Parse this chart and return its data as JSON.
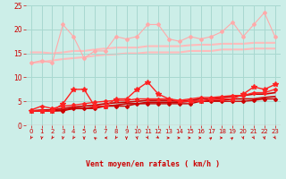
{
  "background_color": "#cceee8",
  "grid_color": "#a8d8d0",
  "xlim": [
    -0.5,
    23.5
  ],
  "ylim": [
    0,
    25
  ],
  "yticks": [
    0,
    5,
    10,
    15,
    20,
    25
  ],
  "xticks": [
    0,
    1,
    2,
    3,
    4,
    5,
    6,
    7,
    8,
    9,
    10,
    11,
    12,
    13,
    14,
    15,
    16,
    17,
    18,
    19,
    20,
    21,
    22,
    23
  ],
  "xlabel": "Vent moyen/en rafales ( km/h )",
  "xlabel_color": "#cc0000",
  "tick_color": "#cc0000",
  "series": [
    {
      "y": [
        13.0,
        13.5,
        13.0,
        21.0,
        18.5,
        14.0,
        15.5,
        15.5,
        18.5,
        18.0,
        18.5,
        21.0,
        21.0,
        18.0,
        17.5,
        18.5,
        18.0,
        18.5,
        19.5,
        21.5,
        18.5,
        21.0,
        23.5,
        18.5
      ],
      "color": "#ffaaaa",
      "lw": 0.8,
      "marker": "D",
      "markersize": 2.0,
      "zorder": 3
    },
    {
      "y": [
        15.2,
        15.2,
        15.0,
        15.2,
        15.5,
        15.5,
        15.8,
        16.0,
        16.2,
        16.2,
        16.2,
        16.5,
        16.5,
        16.5,
        16.5,
        16.7,
        16.8,
        16.8,
        17.0,
        17.0,
        17.0,
        17.2,
        17.2,
        17.2
      ],
      "color": "#ffbbbb",
      "lw": 1.5,
      "marker": null,
      "markersize": 0,
      "zorder": 1
    },
    {
      "y": [
        13.0,
        13.2,
        13.5,
        13.8,
        14.0,
        14.2,
        14.5,
        14.7,
        14.8,
        15.0,
        15.0,
        15.2,
        15.2,
        15.2,
        15.2,
        15.5,
        15.5,
        15.5,
        15.8,
        15.8,
        15.8,
        16.0,
        16.0,
        16.0
      ],
      "color": "#ffbbbb",
      "lw": 1.5,
      "marker": null,
      "markersize": 0,
      "zorder": 1
    },
    {
      "y": [
        3.0,
        3.0,
        3.0,
        4.5,
        7.5,
        7.5,
        4.0,
        4.0,
        5.5,
        5.5,
        7.5,
        9.0,
        6.5,
        5.5,
        5.0,
        5.0,
        5.0,
        5.5,
        5.5,
        5.5,
        6.5,
        8.0,
        7.5,
        8.5
      ],
      "color": "#ff2222",
      "lw": 1.0,
      "marker": "*",
      "markersize": 4.0,
      "zorder": 4
    },
    {
      "y": [
        3.0,
        3.2,
        3.2,
        3.5,
        3.8,
        4.0,
        4.2,
        4.5,
        4.7,
        4.8,
        5.0,
        5.2,
        5.2,
        5.2,
        5.0,
        5.2,
        5.5,
        5.5,
        5.8,
        6.0,
        6.2,
        6.5,
        6.5,
        6.8
      ],
      "color": "#cc0000",
      "lw": 1.2,
      "marker": null,
      "markersize": 0,
      "zorder": 2
    },
    {
      "y": [
        3.0,
        3.0,
        3.0,
        3.2,
        3.5,
        3.5,
        3.8,
        4.0,
        4.2,
        4.5,
        4.5,
        4.8,
        4.8,
        4.8,
        4.8,
        5.0,
        5.0,
        5.2,
        5.2,
        5.5,
        5.5,
        5.5,
        5.8,
        6.0
      ],
      "color": "#cc0000",
      "lw": 1.2,
      "marker": null,
      "markersize": 0,
      "zorder": 2
    },
    {
      "y": [
        3.2,
        4.0,
        3.5,
        4.0,
        4.2,
        4.5,
        4.8,
        5.0,
        5.2,
        5.2,
        5.5,
        5.5,
        5.5,
        5.5,
        5.2,
        5.5,
        5.8,
        5.8,
        6.0,
        6.2,
        6.2,
        6.8,
        6.8,
        7.5
      ],
      "color": "#ff2222",
      "lw": 1.0,
      "marker": "D",
      "markersize": 2.0,
      "zorder": 3
    },
    {
      "y": [
        3.0,
        3.0,
        3.0,
        3.0,
        3.5,
        3.5,
        3.5,
        4.0,
        4.0,
        4.0,
        4.5,
        4.5,
        4.5,
        4.5,
        4.5,
        4.5,
        5.0,
        5.0,
        5.0,
        5.0,
        5.0,
        5.2,
        5.5,
        5.5
      ],
      "color": "#cc0000",
      "lw": 1.0,
      "marker": "D",
      "markersize": 2.0,
      "zorder": 2
    }
  ],
  "wind_angles": [
    225,
    202,
    225,
    202,
    225,
    180,
    292,
    270,
    225,
    180,
    157,
    135,
    112,
    90,
    90,
    90,
    90,
    67,
    90,
    67,
    157,
    135,
    157,
    135
  ],
  "arrow_color": "#cc0000"
}
